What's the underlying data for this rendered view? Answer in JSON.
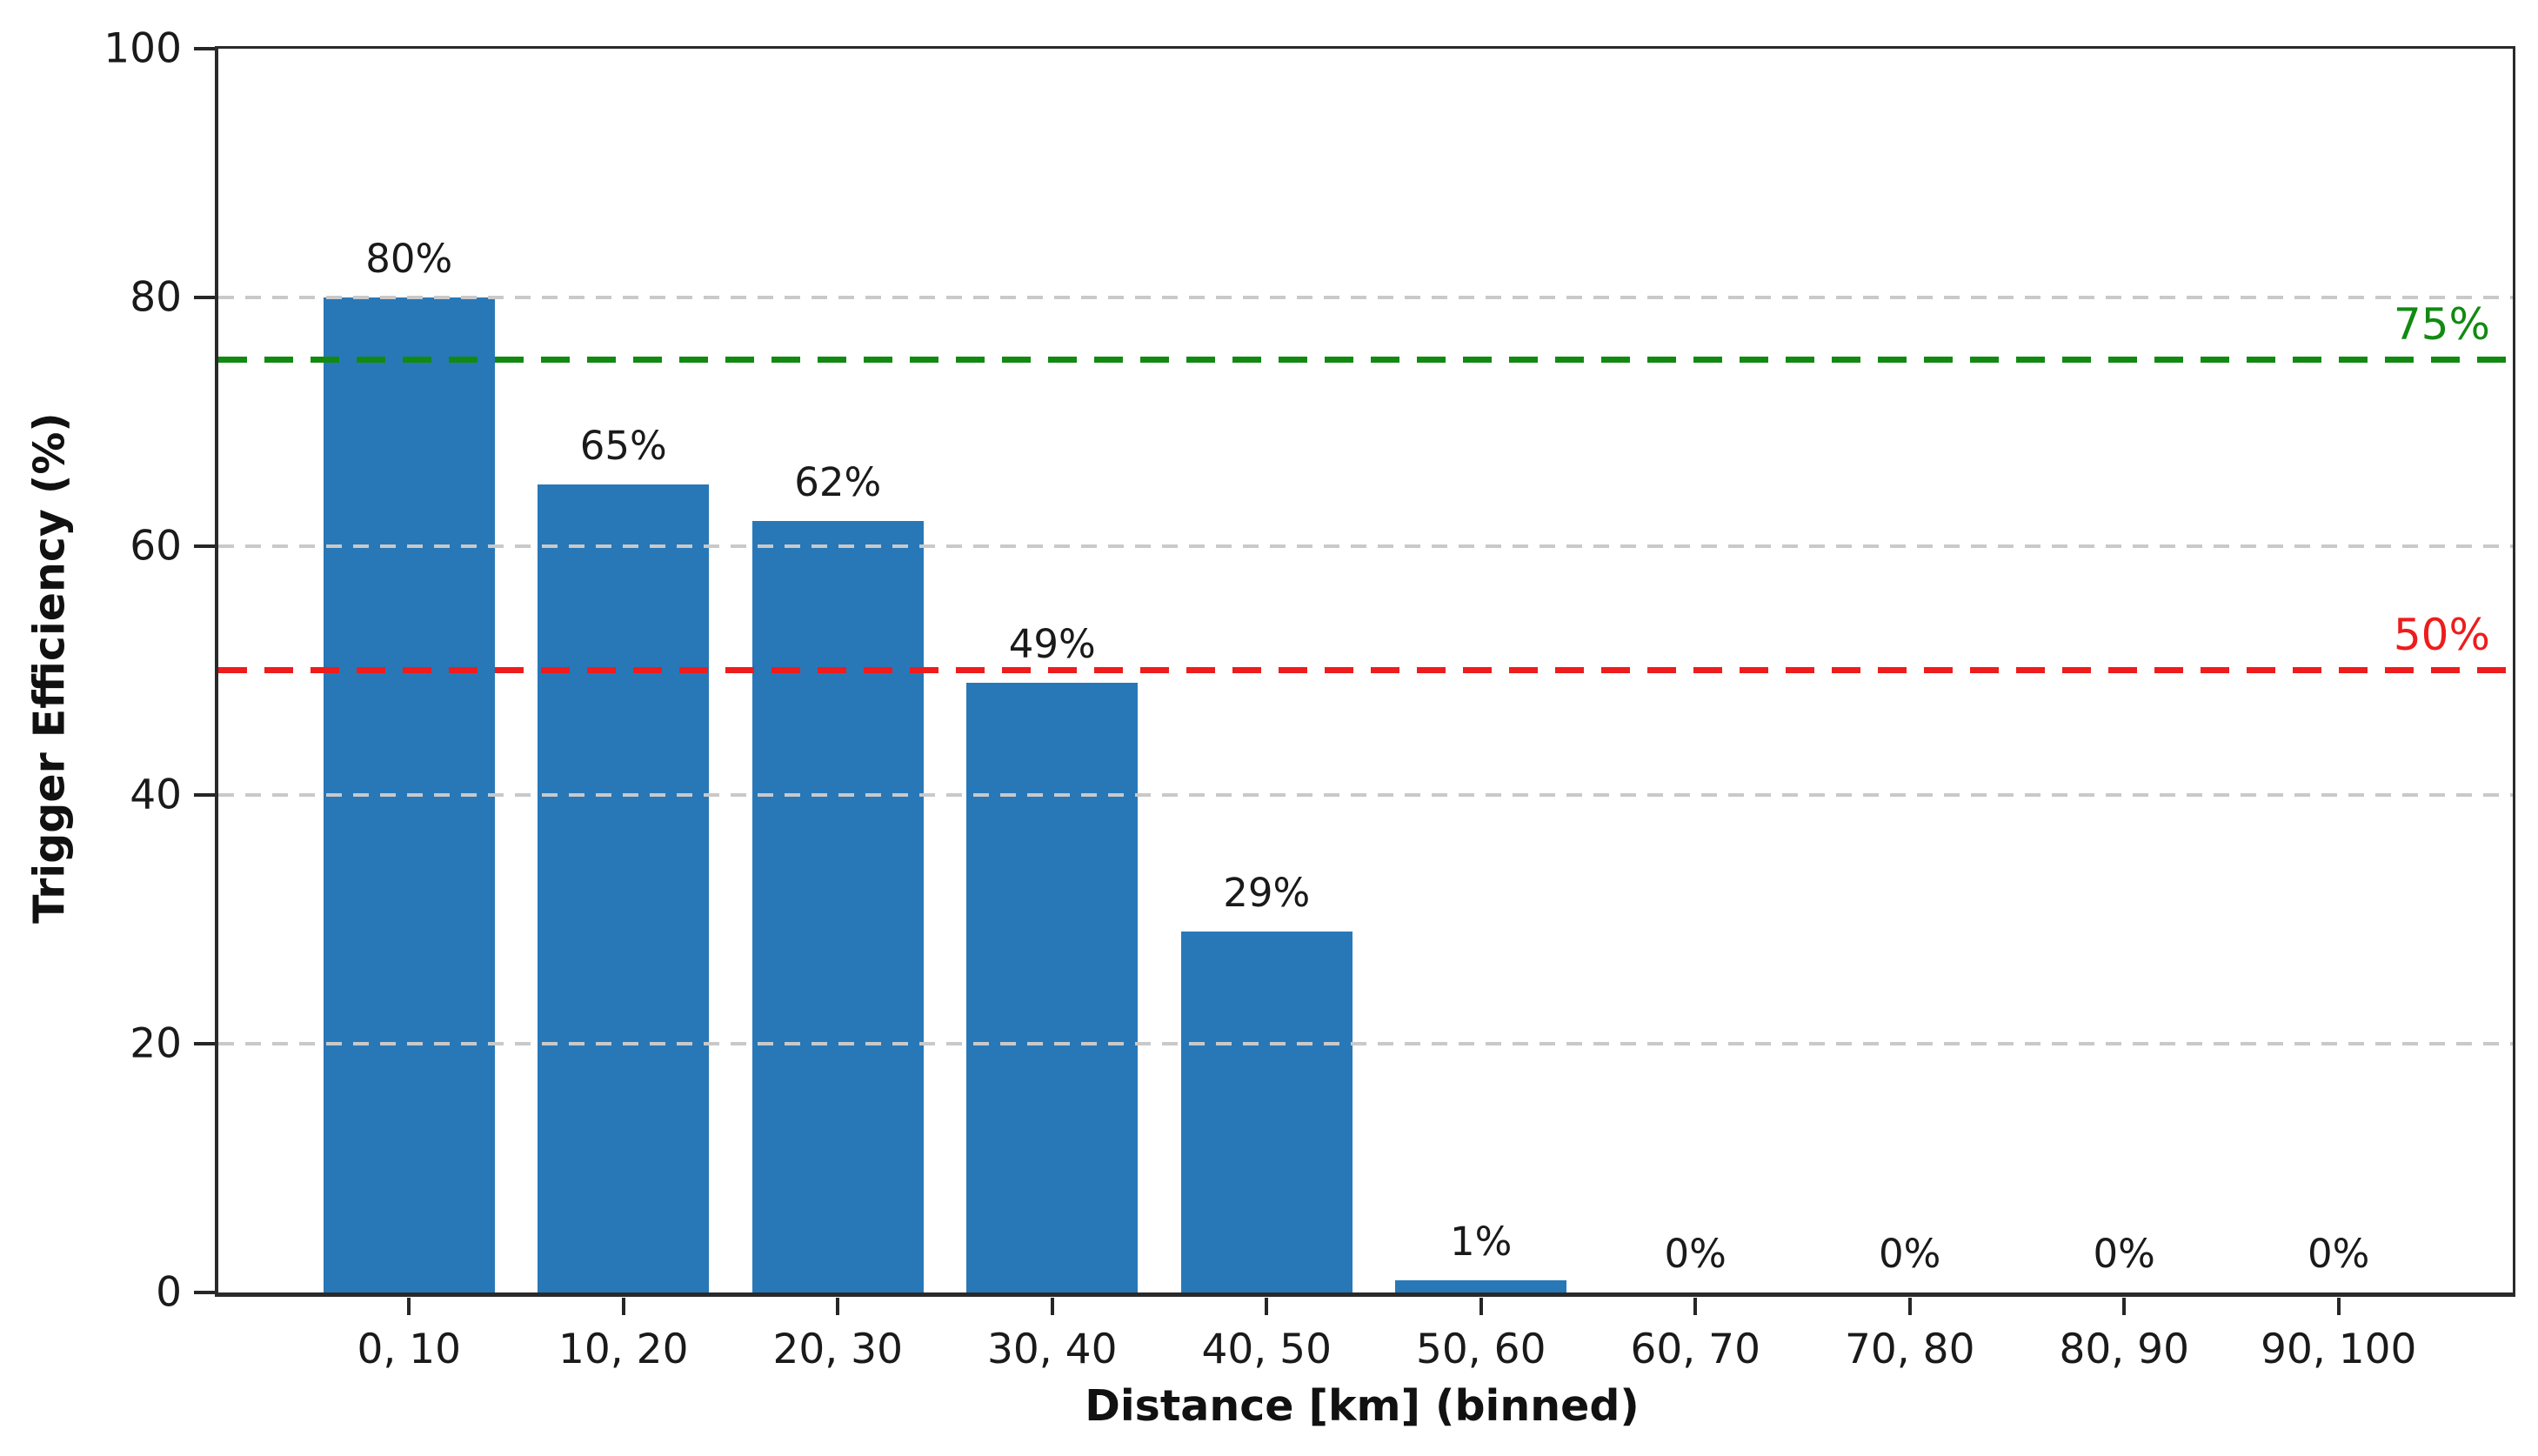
{
  "chart_data": {
    "type": "bar",
    "title": "",
    "xlabel": "Distance [km] (binned)",
    "ylabel": "Trigger Efficiency (%)",
    "categories": [
      "0, 10",
      "10, 20",
      "20, 30",
      "30, 40",
      "40, 50",
      "50, 60",
      "60, 70",
      "70, 80",
      "80, 90",
      "90, 100"
    ],
    "values": [
      80,
      65,
      62,
      49,
      29,
      1,
      0,
      0,
      0,
      0
    ],
    "bar_labels": [
      "80%",
      "65%",
      "62%",
      "49%",
      "29%",
      "1%",
      "0%",
      "0%",
      "0%",
      "0%"
    ],
    "ylim": [
      0,
      100
    ],
    "y_ticks": [
      0,
      20,
      40,
      60,
      80,
      100
    ],
    "grid": {
      "values": [
        20,
        40,
        60,
        80
      ],
      "color": "#c9c9c9",
      "style": "dashed",
      "orientation": "horizontal"
    },
    "reference_lines": [
      {
        "value": 75,
        "label": "75%",
        "color": "#128a12",
        "style": "dashed"
      },
      {
        "value": 50,
        "label": "50%",
        "color": "#ee1c1c",
        "style": "dashed"
      }
    ],
    "bar_color": "#2878b8",
    "legend": null
  }
}
